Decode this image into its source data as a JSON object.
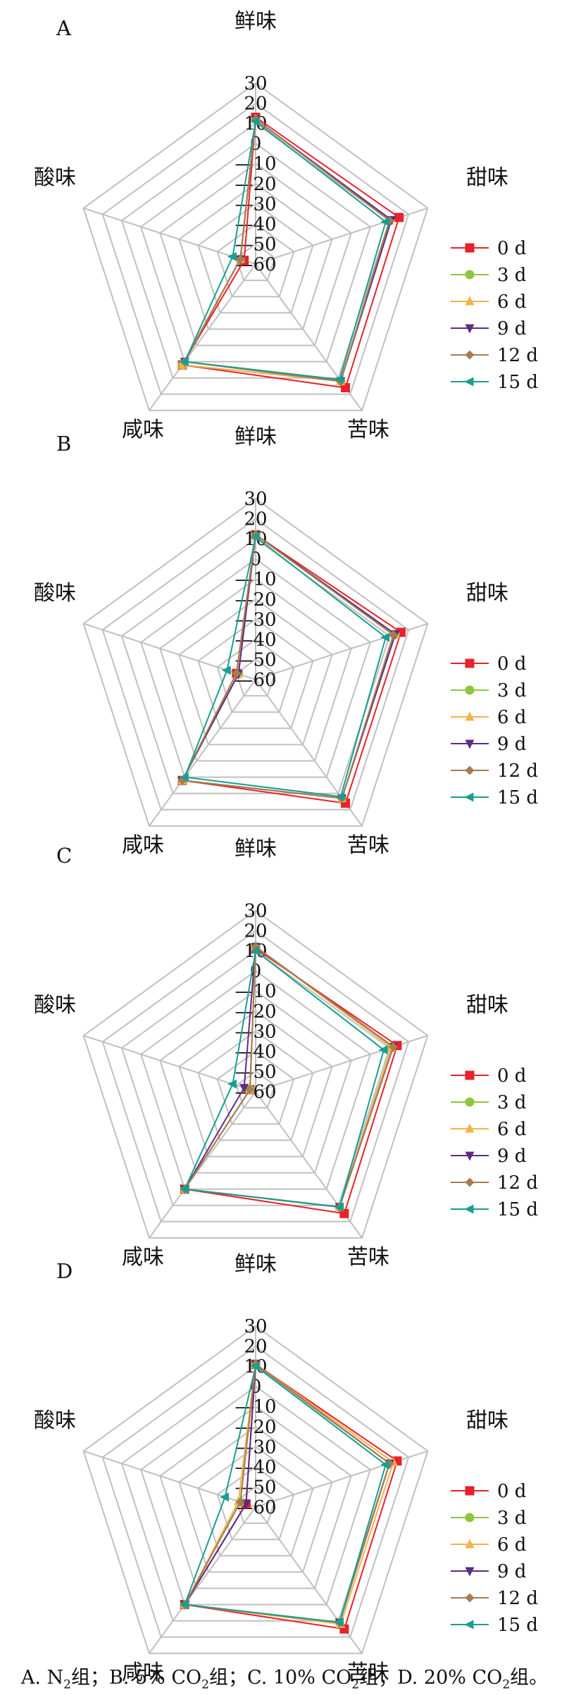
{
  "caption": {
    "a": "A. N",
    "a_sub": "2",
    "a_tail": "组；",
    "b": "B. 5% CO",
    "b_sub": "2",
    "b_tail": "组；",
    "c": "C. 10% CO",
    "c_sub": "2",
    "c_tail": "组；",
    "d": "D. 20% CO",
    "d_sub": "2",
    "d_tail": "组。"
  },
  "colors": {
    "grid": "#c0c0c0",
    "series": [
      "#e8212a",
      "#8cc63f",
      "#f4b24a",
      "#5b2c83",
      "#a67c52",
      "#1a9e8f"
    ]
  },
  "chart_data": [
    {
      "type": "radar",
      "panel_label": "A",
      "axes": [
        "鲜味",
        "甜味",
        "苦味",
        "咸味",
        "酸味"
      ],
      "ticks": [
        "30",
        "20",
        "10",
        "0",
        "—10",
        "—20",
        "—30",
        "—40",
        "—50",
        "—60"
      ],
      "range": [
        -60,
        30
      ],
      "legend_position": "right",
      "series": [
        {
          "name": "0 d",
          "marker": "square",
          "values": [
            13,
            15,
            16,
            2,
            -54
          ]
        },
        {
          "name": "3 d",
          "marker": "circle",
          "values": [
            12,
            10,
            12,
            2,
            -52
          ]
        },
        {
          "name": "6 d",
          "marker": "triangle-up",
          "values": [
            12,
            10,
            12,
            2,
            -52
          ]
        },
        {
          "name": "9 d",
          "marker": "triangle-down",
          "values": [
            12,
            11,
            12,
            0,
            -52
          ]
        },
        {
          "name": "12 d",
          "marker": "diamond",
          "values": [
            12,
            10,
            12,
            0,
            -52
          ]
        },
        {
          "name": "15 d",
          "marker": "triangle-left",
          "values": [
            11,
            8,
            11,
            0,
            -48
          ]
        }
      ]
    },
    {
      "type": "radar",
      "panel_label": "B",
      "axes": [
        "鲜味",
        "甜味",
        "苦味",
        "咸味",
        "酸味"
      ],
      "ticks": [
        "30",
        "20",
        "10",
        "0",
        "—10",
        "—20",
        "—30",
        "—40",
        "—50",
        "—60"
      ],
      "range": [
        -60,
        30
      ],
      "legend_position": "right",
      "series": [
        {
          "name": "0 d",
          "marker": "square",
          "values": [
            12,
            16,
            16,
            2,
            -50
          ]
        },
        {
          "name": "3 d",
          "marker": "circle",
          "values": [
            12,
            13,
            13,
            2,
            -51
          ]
        },
        {
          "name": "6 d",
          "marker": "triangle-up",
          "values": [
            12,
            13,
            13,
            2,
            -51
          ]
        },
        {
          "name": "9 d",
          "marker": "triangle-down",
          "values": [
            12,
            13,
            13,
            2,
            -51
          ]
        },
        {
          "name": "12 d",
          "marker": "diamond",
          "values": [
            12,
            12,
            13,
            2,
            -50
          ]
        },
        {
          "name": "15 d",
          "marker": "triangle-left",
          "values": [
            11,
            8,
            12,
            0,
            -45
          ]
        }
      ]
    },
    {
      "type": "radar",
      "panel_label": "C",
      "axes": [
        "鲜味",
        "甜味",
        "苦味",
        "咸味",
        "酸味"
      ],
      "ticks": [
        "30",
        "20",
        "10",
        "0",
        "—10",
        "—20",
        "—30",
        "—40",
        "—50",
        "—60"
      ],
      "range": [
        -60,
        30
      ],
      "legend_position": "right",
      "series": [
        {
          "name": "0 d",
          "marker": "square",
          "values": [
            11,
            14,
            15,
            0,
            -57
          ]
        },
        {
          "name": "3 d",
          "marker": "circle",
          "values": [
            12,
            11,
            11,
            0,
            -57
          ]
        },
        {
          "name": "6 d",
          "marker": "triangle-up",
          "values": [
            12,
            11,
            11,
            0,
            -57
          ]
        },
        {
          "name": "9 d",
          "marker": "triangle-down",
          "values": [
            12,
            12,
            11,
            0,
            -54
          ]
        },
        {
          "name": "12 d",
          "marker": "diamond",
          "values": [
            12,
            12,
            11,
            0,
            -57
          ]
        },
        {
          "name": "15 d",
          "marker": "triangle-left",
          "values": [
            10,
            7,
            11,
            0,
            -48
          ]
        }
      ]
    },
    {
      "type": "radar",
      "panel_label": "D",
      "axes": [
        "鲜味",
        "甜味",
        "苦味",
        "咸味",
        "酸味"
      ],
      "ticks": [
        "30",
        "20",
        "10",
        "0",
        "—10",
        "—20",
        "—30",
        "—40",
        "—50",
        "—60"
      ],
      "range": [
        -60,
        30
      ],
      "legend_position": "right",
      "series": [
        {
          "name": "0 d",
          "marker": "square",
          "values": [
            11,
            14,
            15,
            0,
            -55
          ]
        },
        {
          "name": "3 d",
          "marker": "circle",
          "values": [
            11,
            10,
            11,
            0,
            -52
          ]
        },
        {
          "name": "6 d",
          "marker": "triangle-up",
          "values": [
            11,
            12,
            12,
            0,
            -51
          ]
        },
        {
          "name": "9 d",
          "marker": "triangle-down",
          "values": [
            11,
            10,
            11,
            0,
            -55
          ]
        },
        {
          "name": "12 d",
          "marker": "diamond",
          "values": [
            11,
            10,
            11,
            0,
            -52
          ]
        },
        {
          "name": "15 d",
          "marker": "triangle-left",
          "values": [
            10,
            8,
            11,
            0,
            -44
          ]
        }
      ]
    }
  ]
}
